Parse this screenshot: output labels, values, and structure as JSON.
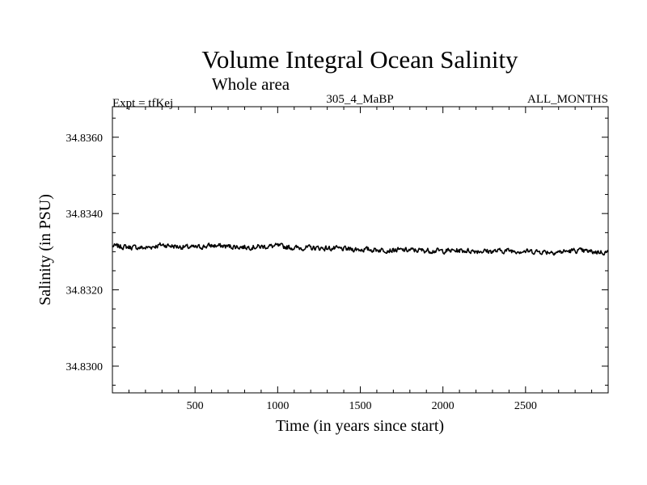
{
  "chart_data": {
    "type": "line",
    "title": "Volume Integral Ocean Salinity",
    "subtitle": "Whole area",
    "header_left": "Expt = tfKej",
    "header_center": "305_4_MaBP",
    "header_right": "ALL_MONTHS",
    "xlabel": "Time (in years since start)",
    "ylabel": "Salinity (in PSU)",
    "xlim": [
      0,
      3000
    ],
    "ylim": [
      34.8293,
      34.8368
    ],
    "xticks": [
      500,
      1000,
      1500,
      2000,
      2500
    ],
    "yticks": [
      34.83,
      34.832,
      34.834,
      34.836
    ],
    "ytick_labels": [
      "34.8300",
      "34.8320",
      "34.8340",
      "34.8360"
    ],
    "grid": false,
    "series": [
      {
        "x": [
          0,
          100,
          200,
          300,
          400,
          500,
          600,
          700,
          800,
          900,
          1000,
          1100,
          1200,
          1300,
          1400,
          1500,
          1600,
          1700,
          1800,
          1900,
          2000,
          2100,
          2200,
          2300,
          2400,
          2500,
          2600,
          2700,
          2800,
          2900,
          3000
        ],
        "values": [
          34.83315,
          34.83312,
          34.8331,
          34.83318,
          34.83313,
          34.83311,
          34.83316,
          34.83314,
          34.83312,
          34.83313,
          34.83315,
          34.8331,
          34.8331,
          34.83309,
          34.83307,
          34.83306,
          34.83305,
          34.83304,
          34.83304,
          34.83303,
          34.83302,
          34.83303,
          34.83302,
          34.83301,
          34.83303,
          34.83301,
          34.833,
          34.83299,
          34.83303,
          34.833,
          34.83298
        ]
      }
    ]
  }
}
